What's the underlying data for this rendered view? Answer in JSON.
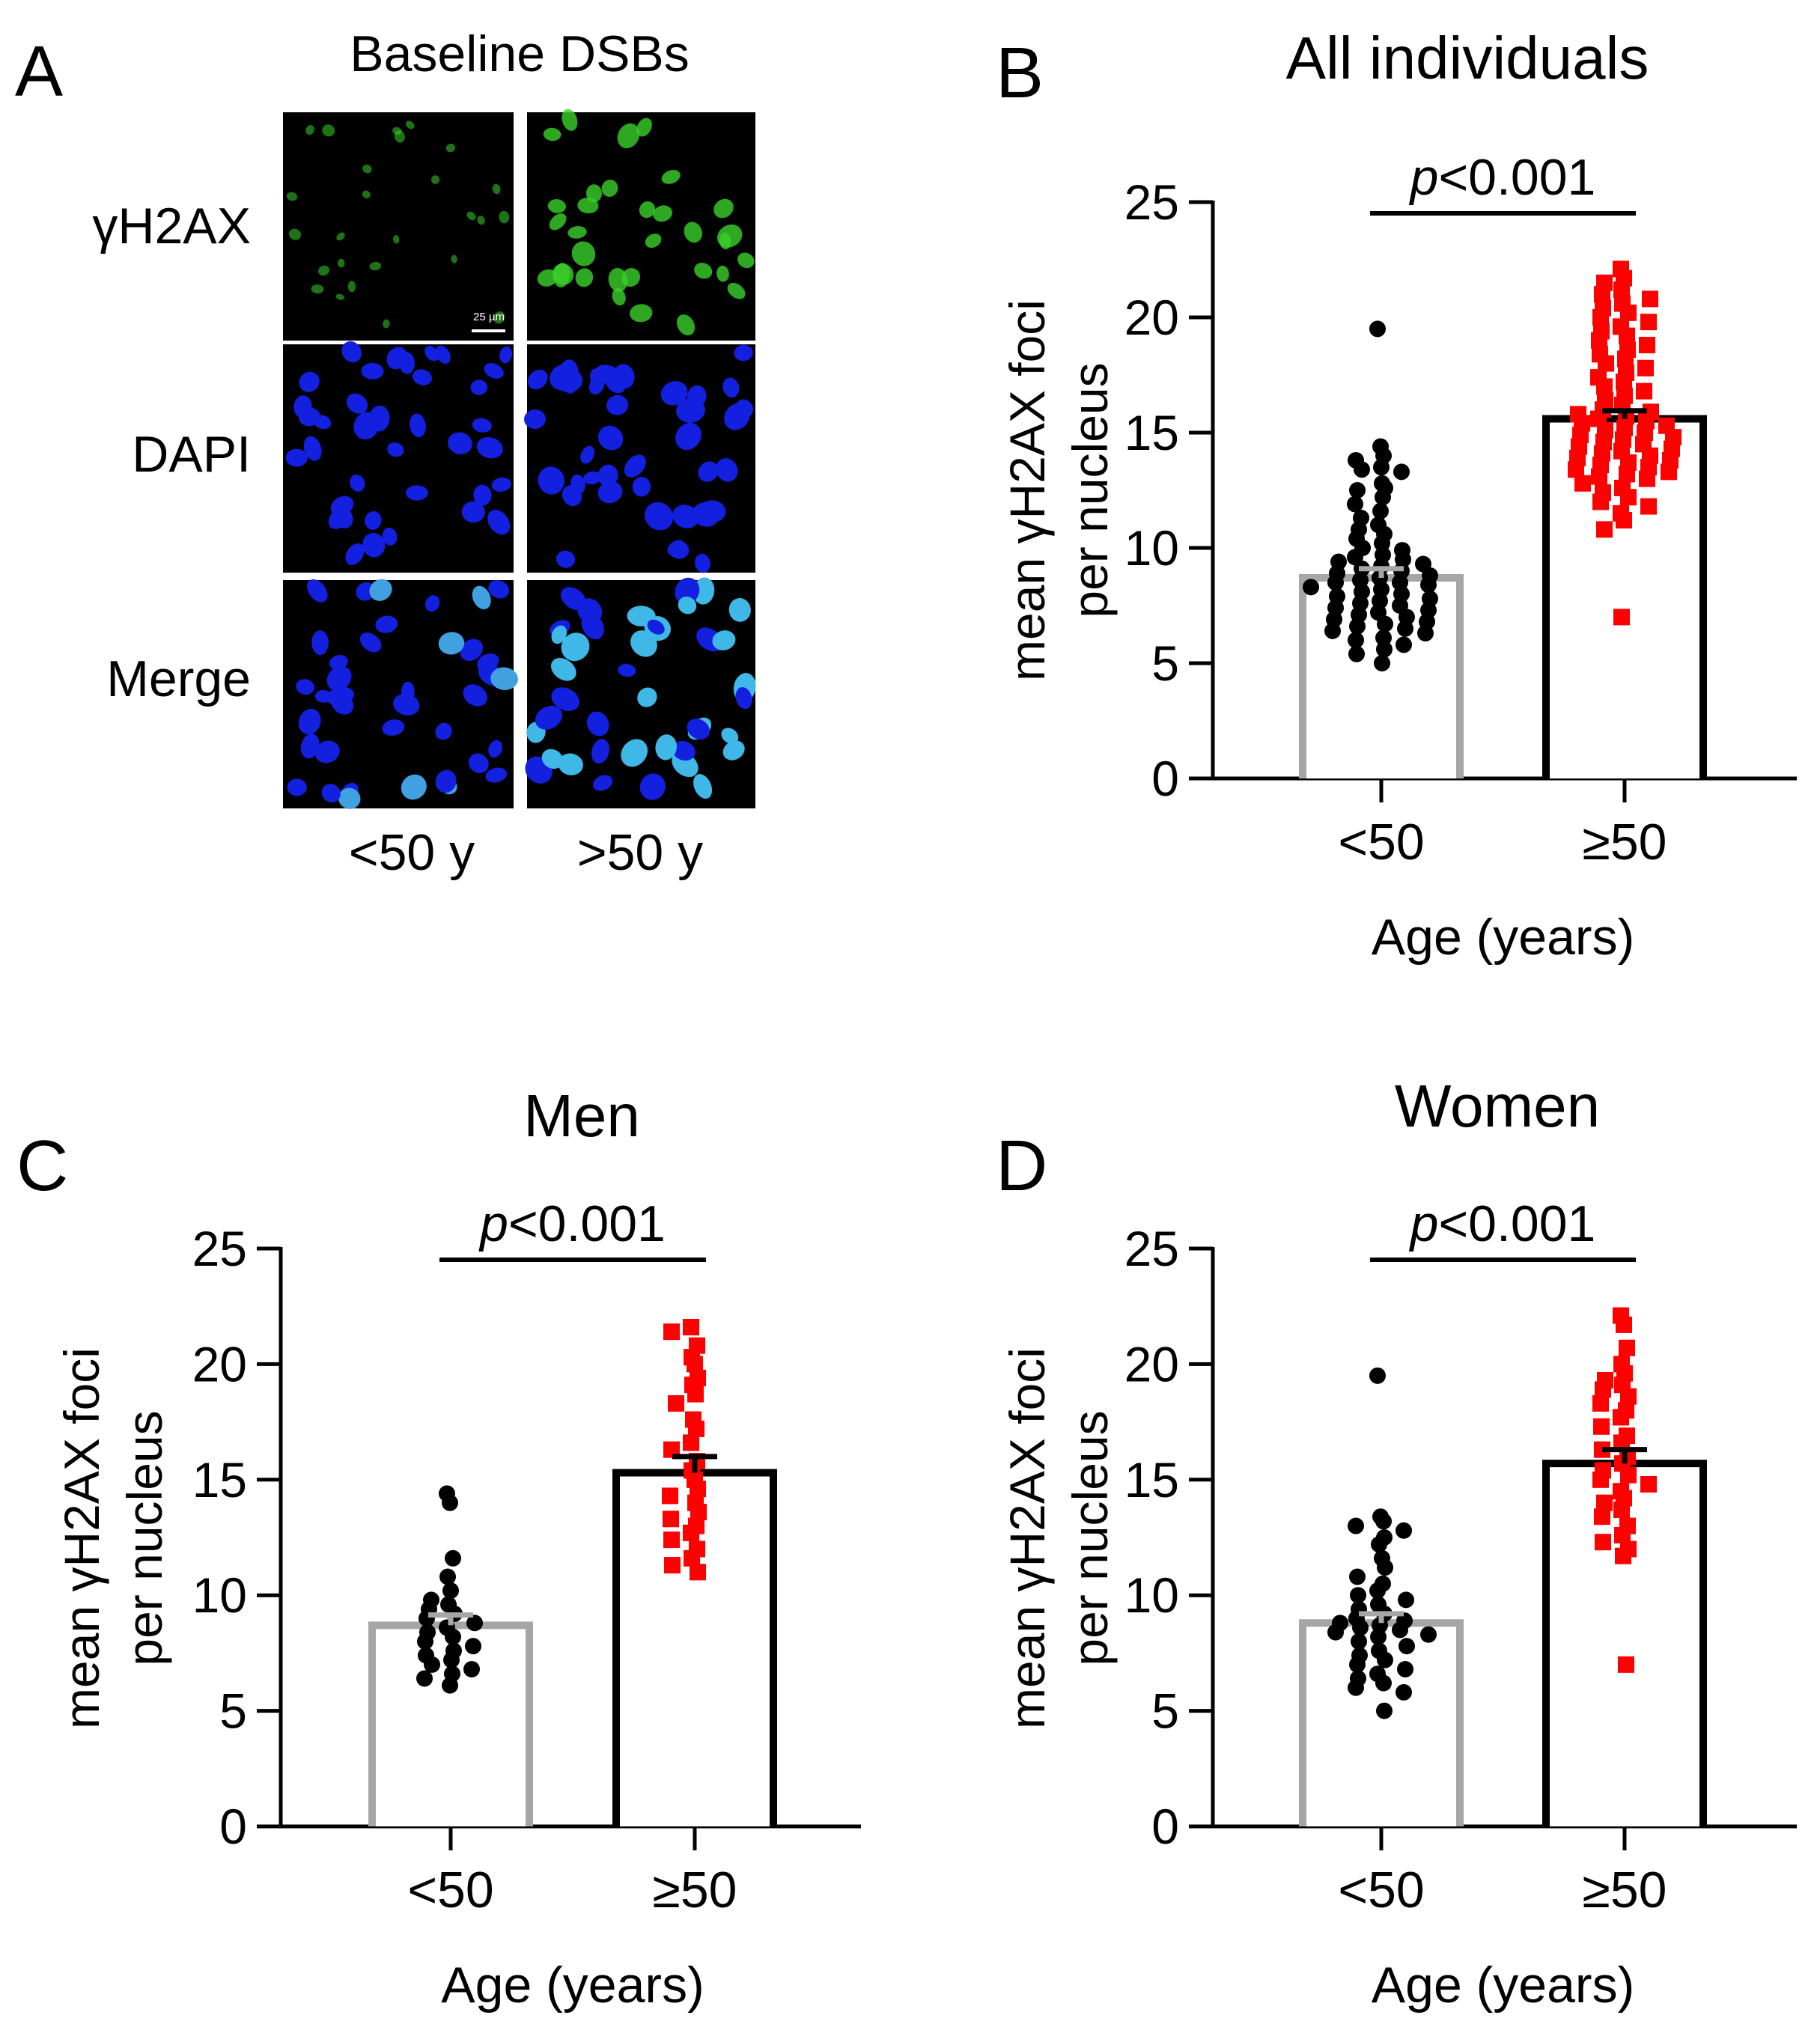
{
  "panel_a": {
    "letter": "A",
    "title": "Baseline DSBs",
    "row_labels": [
      "γH2AX",
      "DAPI",
      "Merge"
    ],
    "col_labels": [
      "<50 y",
      ">50 y"
    ],
    "scale_bar": "25 µm",
    "colors": {
      "gh2ax": "#39d12a",
      "dapi": "#1420e0",
      "merge_old": "#3fb8e8"
    }
  },
  "chart_data": [
    {
      "panel": "B",
      "type": "bar",
      "title": "All individuals",
      "xlabel": "Age (years)",
      "ylabel": [
        "mean γH2AX foci",
        "per nucleus"
      ],
      "categories": [
        "<50",
        "≥50"
      ],
      "ylim": [
        0,
        25
      ],
      "yticks": [
        0,
        5,
        10,
        15,
        20,
        25
      ],
      "means": [
        8.7,
        15.6
      ],
      "sem": [
        0.4,
        0.35
      ],
      "annotation": {
        "italic": "p",
        "text": "<0.001"
      },
      "bar_colors": [
        "#a6a6a6",
        "#000000"
      ],
      "marker_colors": [
        "#000000",
        "#ff0000"
      ],
      "markers": [
        "circle",
        "square"
      ],
      "points": [
        [
          19.5,
          14.4,
          14.0,
          13.8,
          13.5,
          13.4,
          13.3,
          12.8,
          12.6,
          12.5,
          12.2,
          11.9,
          11.6,
          11.3,
          11.0,
          10.8,
          10.6,
          10.4,
          10.2,
          10.0,
          9.9,
          9.7,
          9.6,
          9.5,
          9.4,
          9.3,
          9.2,
          9.1,
          9.0,
          8.9,
          8.8,
          8.7,
          8.6,
          8.5,
          8.5,
          8.4,
          8.3,
          8.2,
          8.1,
          8.0,
          7.9,
          7.8,
          7.7,
          7.6,
          7.5,
          7.4,
          7.3,
          7.2,
          7.1,
          7.0,
          6.9,
          6.8,
          6.7,
          6.6,
          6.5,
          6.4,
          6.3,
          6.1,
          6.0,
          5.8,
          5.6,
          5.4,
          5.0
        ],
        [
          22.1,
          21.7,
          21.5,
          21.2,
          21.0,
          20.8,
          20.6,
          20.4,
          20.2,
          20.0,
          19.8,
          19.6,
          19.4,
          19.2,
          19.0,
          18.8,
          18.6,
          18.4,
          18.2,
          18.0,
          17.8,
          17.6,
          17.4,
          17.2,
          17.0,
          16.8,
          16.6,
          16.4,
          16.2,
          16.0,
          15.9,
          15.8,
          15.7,
          15.6,
          15.5,
          15.4,
          15.3,
          15.2,
          15.1,
          15.0,
          14.9,
          14.8,
          14.7,
          14.6,
          14.5,
          14.4,
          14.3,
          14.2,
          14.1,
          14.0,
          13.9,
          13.8,
          13.7,
          13.6,
          13.5,
          13.4,
          13.3,
          13.2,
          13.1,
          13.0,
          12.8,
          12.6,
          12.4,
          12.2,
          12.0,
          11.8,
          11.5,
          11.2,
          10.8,
          7.0
        ]
      ]
    },
    {
      "panel": "C",
      "type": "bar",
      "title": "Men",
      "xlabel": "Age (years)",
      "ylabel": [
        "mean γH2AX foci",
        "per nucleus"
      ],
      "categories": [
        "<50",
        "≥50"
      ],
      "ylim": [
        0,
        25
      ],
      "yticks": [
        0,
        5,
        10,
        15,
        20,
        25
      ],
      "means": [
        8.7,
        15.3
      ],
      "sem": [
        0.45,
        0.7
      ],
      "annotation": {
        "italic": "p",
        "text": "<0.001"
      },
      "bar_colors": [
        "#a6a6a6",
        "#000000"
      ],
      "marker_colors": [
        "#000000",
        "#ff0000"
      ],
      "markers": [
        "circle",
        "square"
      ],
      "points": [
        [
          14.4,
          14.0,
          11.6,
          10.8,
          10.2,
          9.8,
          9.6,
          9.4,
          9.2,
          9.0,
          8.8,
          8.6,
          8.4,
          8.2,
          8.0,
          7.8,
          7.6,
          7.4,
          7.2,
          7.0,
          6.8,
          6.6,
          6.4,
          6.1
        ],
        [
          21.6,
          21.4,
          20.8,
          20.3,
          20.0,
          19.4,
          19.1,
          18.7,
          18.3,
          17.6,
          17.2,
          16.6,
          16.3,
          15.8,
          15.4,
          15.0,
          14.6,
          14.3,
          14.0,
          13.6,
          13.3,
          13.0,
          12.7,
          12.4,
          12.0,
          11.6,
          11.3,
          11.0
        ]
      ]
    },
    {
      "panel": "D",
      "type": "bar",
      "title": "Women",
      "xlabel": "Age (years)",
      "ylabel": [
        "mean γH2AX foci",
        "per nucleus"
      ],
      "categories": [
        "<50",
        "≥50"
      ],
      "ylim": [
        0,
        25
      ],
      "yticks": [
        0,
        5,
        10,
        15,
        20,
        25
      ],
      "means": [
        8.8,
        15.7
      ],
      "sem": [
        0.4,
        0.6
      ],
      "annotation": {
        "italic": "p",
        "text": "<0.001"
      },
      "bar_colors": [
        "#a6a6a6",
        "#000000"
      ],
      "marker_colors": [
        "#000000",
        "#ff0000"
      ],
      "markers": [
        "circle",
        "square"
      ],
      "points": [
        [
          19.5,
          13.4,
          13.2,
          13.0,
          12.8,
          12.5,
          12.2,
          11.6,
          11.2,
          10.8,
          10.5,
          10.2,
          10.0,
          9.8,
          9.6,
          9.4,
          9.2,
          9.0,
          8.9,
          8.8,
          8.7,
          8.6,
          8.5,
          8.4,
          8.3,
          8.2,
          8.0,
          7.8,
          7.6,
          7.4,
          7.2,
          7.0,
          6.8,
          6.6,
          6.4,
          6.2,
          6.0,
          5.8,
          5.0
        ],
        [
          22.1,
          21.7,
          20.7,
          20.0,
          19.6,
          19.3,
          19.1,
          18.9,
          18.6,
          18.3,
          18.0,
          17.7,
          17.3,
          16.9,
          16.6,
          16.3,
          16.0,
          15.7,
          15.4,
          15.2,
          15.0,
          14.8,
          14.5,
          14.2,
          14.0,
          13.7,
          13.4,
          13.0,
          12.6,
          12.3,
          12.0,
          11.7,
          7.0
        ]
      ]
    }
  ]
}
